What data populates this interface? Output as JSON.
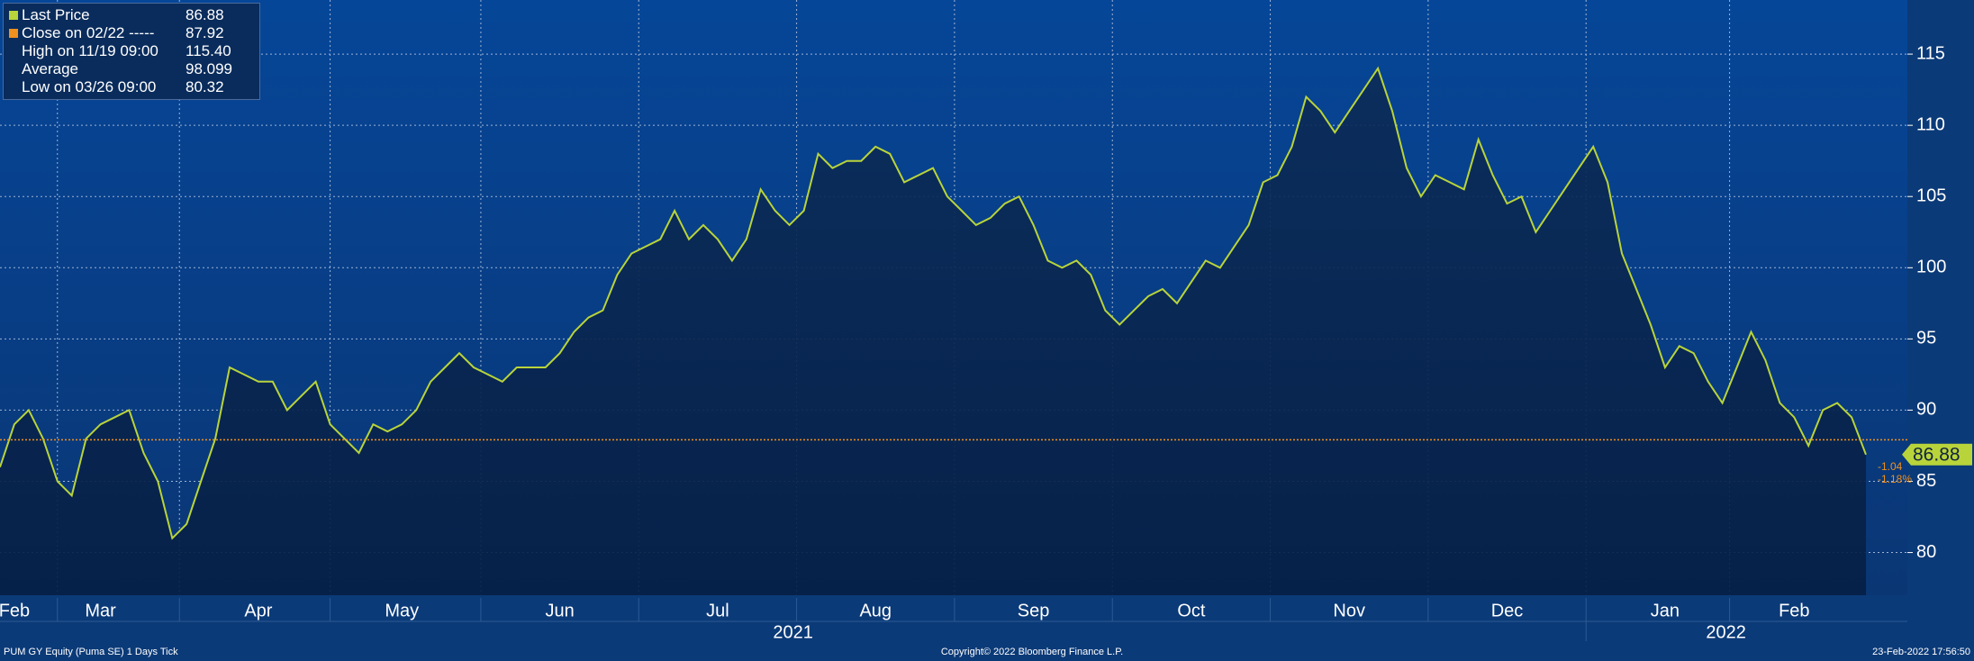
{
  "chart_data": {
    "type": "line",
    "color": "#b9d43a",
    "close_color": "#f0901e",
    "categories": [
      null,
      "Feb",
      null,
      null,
      null,
      null,
      null,
      "Mar",
      null,
      null,
      null,
      null,
      null,
      null,
      null,
      null,
      null,
      null,
      "Apr",
      null,
      null,
      null,
      null,
      null,
      null,
      null,
      null,
      null,
      "May",
      null,
      null,
      null,
      null,
      null,
      null,
      null,
      null,
      null,
      null,
      "Jun",
      null,
      null,
      null,
      null,
      null,
      null,
      null,
      null,
      null,
      null,
      "Jul",
      null,
      null,
      null,
      null,
      null,
      null,
      null,
      null,
      null,
      null,
      "Aug",
      null,
      null,
      null,
      null,
      null,
      null,
      null,
      null,
      null,
      null,
      "Sep",
      null,
      null,
      null,
      null,
      null,
      null,
      null,
      null,
      null,
      null,
      "Oct",
      null,
      null,
      null,
      null,
      null,
      null,
      null,
      null,
      null,
      null,
      "Nov",
      null,
      null,
      null,
      null,
      null,
      null,
      null,
      null,
      null,
      null,
      "Dec",
      null,
      null,
      null,
      null,
      null,
      null,
      null,
      null,
      null,
      null,
      "Jan",
      null,
      null,
      null,
      null,
      null,
      null,
      null,
      null,
      "Feb",
      null,
      null,
      null,
      null,
      null
    ],
    "values": [
      86,
      89,
      90,
      88,
      85,
      84,
      88,
      89,
      89.5,
      90,
      87,
      85,
      81,
      82,
      85,
      88,
      93,
      92.5,
      92,
      92,
      90,
      91,
      92,
      89,
      88,
      87,
      89,
      88.5,
      89,
      90,
      92,
      93,
      94,
      93,
      92.5,
      92,
      93,
      93,
      93,
      94,
      95.5,
      96.5,
      97,
      99.5,
      101,
      101.5,
      102,
      104,
      102,
      103,
      102,
      100.5,
      102,
      105.5,
      104,
      103,
      104,
      108,
      107,
      107.5,
      107.5,
      108.5,
      108,
      106,
      106.5,
      107,
      105,
      104,
      103,
      103.5,
      104.5,
      105,
      103,
      100.5,
      100,
      100.5,
      99.5,
      97,
      96,
      97,
      98,
      98.5,
      97.5,
      99,
      100.5,
      100,
      101.5,
      103,
      106,
      106.5,
      108.5,
      112,
      111,
      109.5,
      111,
      112.5,
      114,
      111,
      107,
      105,
      106.5,
      106,
      105.5,
      109,
      106.5,
      104.5,
      105,
      102.5,
      104,
      105.5,
      107,
      108.5,
      106,
      101,
      98.5,
      96,
      93,
      94.5,
      94,
      92,
      90.5,
      93,
      95.5,
      93.5,
      90.5,
      89.5,
      87.5,
      90,
      90.5,
      89.5,
      86.88
    ],
    "years": [
      "2021",
      "2022"
    ],
    "ylim": [
      77,
      118.8
    ],
    "yticks": [
      80,
      85,
      90,
      95,
      100,
      105,
      110,
      115
    ],
    "grid": true,
    "stats": [
      {
        "label": "Last Price",
        "value": 86.88
      },
      {
        "label": "Close on 02/22 -----",
        "value": 87.92
      },
      {
        "label": "High on 11/19 09:00",
        "value": 115.4,
        "value_label": "115.40"
      },
      {
        "label": "Average",
        "value": 98.099
      },
      {
        "label": "Low on 03/26 09:00",
        "value": 80.32
      }
    ],
    "change": -1.04,
    "change_pct": -1.18,
    "change_pct_label": "-1.18%",
    "footer_left": "PUM GY Equity (Puma SE) 1 Days  Tick",
    "footer_center": "Copyright© 2022 Bloomberg Finance L.P.",
    "footer_right": "23-Feb-2022 17:56:50"
  }
}
